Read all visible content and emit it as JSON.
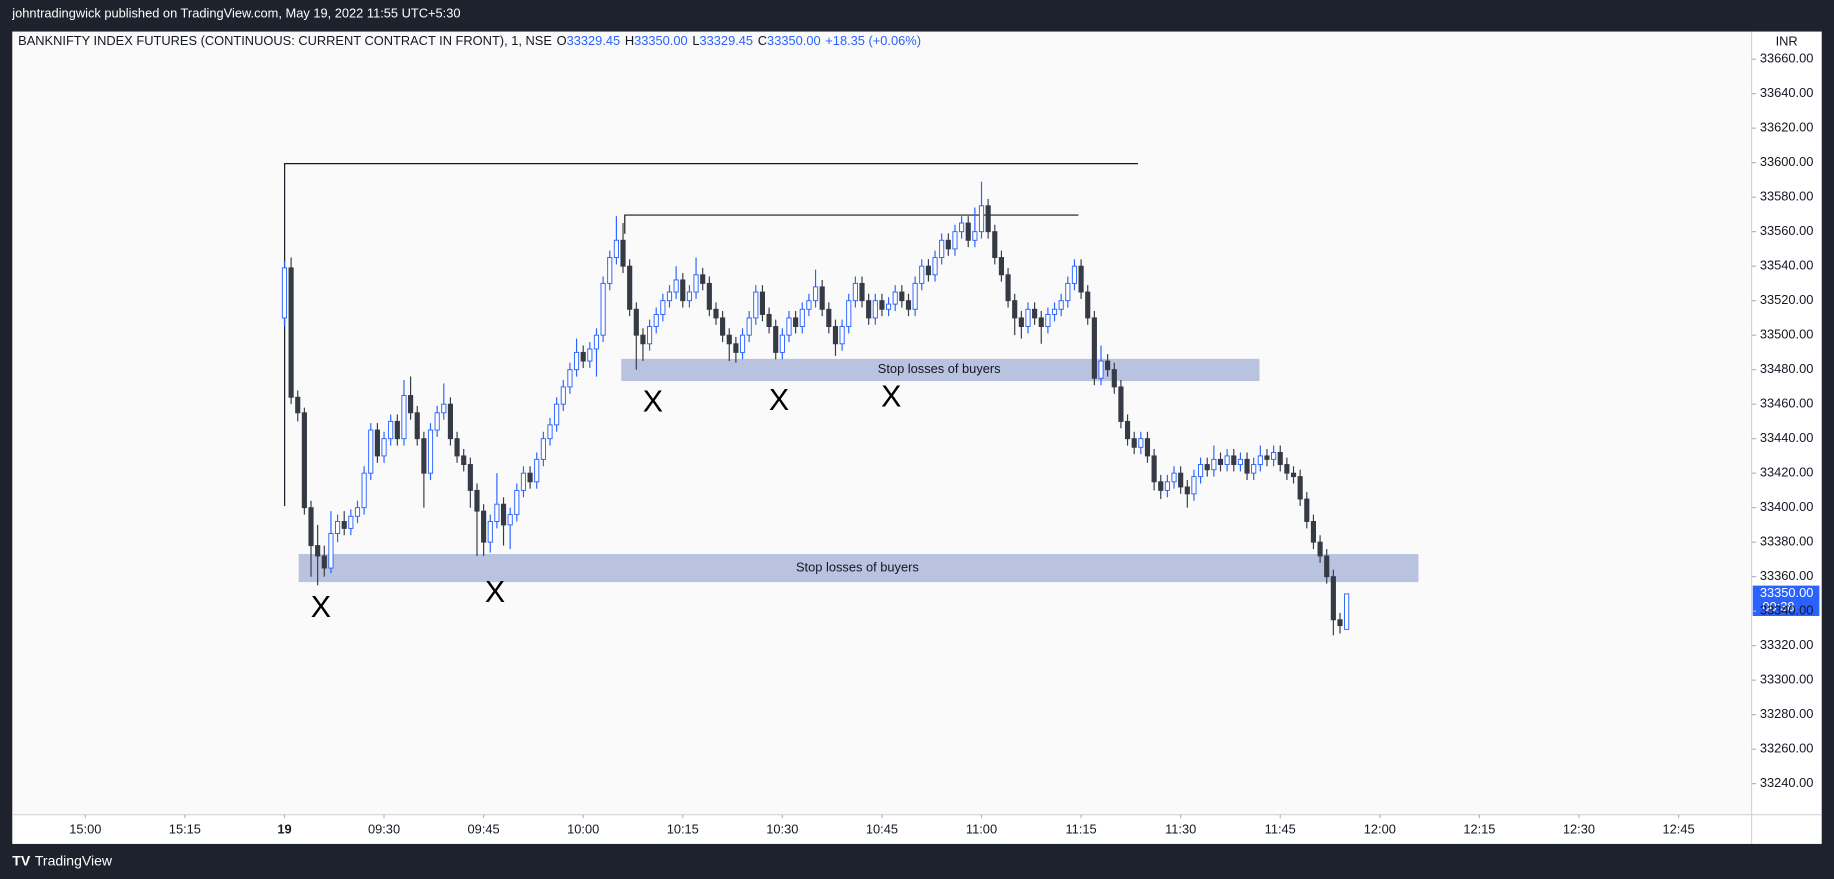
{
  "header": {
    "publisher": "johntradingwick published on TradingView.com, May 19, 2022 11:55 UTC+5:30"
  },
  "legend": {
    "symbol": "BANKNIFTY INDEX FUTURES (CONTINUOUS: CURRENT CONTRACT IN FRONT), 1, NSE",
    "o_key": "O",
    "o": "33329.45",
    "h_key": "H",
    "h": "33350.00",
    "l_key": "L",
    "l": "33329.45",
    "c_key": "C",
    "c": "33350.00",
    "change": "+18.35 (+0.06%)"
  },
  "currency": "INR",
  "price_label": {
    "price": "33350.00",
    "countdown": "00:38"
  },
  "annotations": {
    "zones": [
      "Stop losses of buyers",
      "Stop losses of buyers"
    ],
    "markers": [
      "X",
      "X",
      "X",
      "X",
      "X"
    ]
  },
  "footer": {
    "brand": "TradingView"
  },
  "chart_data": {
    "type": "candlestick",
    "grid": false,
    "up_color": "#2962ff",
    "down_color": "#363a45",
    "xlim": [
      -41,
      221
    ],
    "xticks": [
      {
        "value": -30,
        "label": "15:00"
      },
      {
        "value": -15,
        "label": "15:15"
      },
      {
        "value": 0,
        "label": "19"
      },
      {
        "value": 15,
        "label": "09:30"
      },
      {
        "value": 30,
        "label": "09:45"
      },
      {
        "value": 45,
        "label": "10:00"
      },
      {
        "value": 60,
        "label": "10:15"
      },
      {
        "value": 75,
        "label": "10:30"
      },
      {
        "value": 90,
        "label": "10:45"
      },
      {
        "value": 105,
        "label": "11:00"
      },
      {
        "value": 120,
        "label": "11:15"
      },
      {
        "value": 135,
        "label": "11:30"
      },
      {
        "value": 150,
        "label": "11:45"
      },
      {
        "value": 165,
        "label": "12:00"
      },
      {
        "value": 180,
        "label": "12:15"
      },
      {
        "value": 195,
        "label": "12:30"
      },
      {
        "value": 210,
        "label": "12:45"
      }
    ],
    "ylim": [
      33222,
      33676
    ],
    "yticks": [
      {
        "value": 33240,
        "label": "33240.00"
      },
      {
        "value": 33260,
        "label": "33260.00"
      },
      {
        "value": 33280,
        "label": "33280.00"
      },
      {
        "value": 33300,
        "label": "33300.00"
      },
      {
        "value": 33320,
        "label": "33320.00"
      },
      {
        "value": 33340,
        "label": "33340.00"
      },
      {
        "value": 33360,
        "label": "33360.00"
      },
      {
        "value": 33380,
        "label": "33380.00"
      },
      {
        "value": 33400,
        "label": "33400.00"
      },
      {
        "value": 33420,
        "label": "33420.00"
      },
      {
        "value": 33440,
        "label": "33440.00"
      },
      {
        "value": 33460,
        "label": "33460.00"
      },
      {
        "value": 33480,
        "label": "33480.00"
      },
      {
        "value": 33500,
        "label": "33500.00"
      },
      {
        "value": 33520,
        "label": "33520.00"
      },
      {
        "value": 33540,
        "label": "33540.00"
      },
      {
        "value": 33560,
        "label": "33560.00"
      },
      {
        "value": 33580,
        "label": "33580.00"
      },
      {
        "value": 33600,
        "label": "33600.00"
      },
      {
        "value": 33620,
        "label": "33620.00"
      },
      {
        "value": 33640,
        "label": "33640.00"
      },
      {
        "value": 33660,
        "label": "33660.00"
      }
    ],
    "ohlc": [
      [
        33510,
        33543,
        33505,
        33539
      ],
      [
        33539,
        33545,
        33460,
        33464
      ],
      [
        33464,
        33468,
        33450,
        33455
      ],
      [
        33455,
        33458,
        33396,
        33400
      ],
      [
        33400,
        33404,
        33360,
        33378
      ],
      [
        33378,
        33390,
        33355,
        33372
      ],
      [
        33372,
        33378,
        33360,
        33365
      ],
      [
        33365,
        33398,
        33362,
        33385
      ],
      [
        33385,
        33396,
        33380,
        33392
      ],
      [
        33392,
        33398,
        33384,
        33388
      ],
      [
        33388,
        33399,
        33384,
        33395
      ],
      [
        33395,
        33404,
        33391,
        33400
      ],
      [
        33400,
        33424,
        33396,
        33420
      ],
      [
        33420,
        33449,
        33416,
        33445
      ],
      [
        33445,
        33449,
        33426,
        33430
      ],
      [
        33430,
        33444,
        33426,
        33440
      ],
      [
        33440,
        33454,
        33436,
        33450
      ],
      [
        33450,
        33454,
        33436,
        33440
      ],
      [
        33440,
        33474,
        33436,
        33465
      ],
      [
        33465,
        33476,
        33451,
        33455
      ],
      [
        33455,
        33459,
        33436,
        33440
      ],
      [
        33440,
        33444,
        33400,
        33420
      ],
      [
        33420,
        33449,
        33416,
        33445
      ],
      [
        33445,
        33459,
        33441,
        33455
      ],
      [
        33455,
        33472,
        33451,
        33460
      ],
      [
        33460,
        33464,
        33436,
        33440
      ],
      [
        33440,
        33444,
        33426,
        33430
      ],
      [
        33430,
        33434,
        33421,
        33425
      ],
      [
        33425,
        33429,
        33400,
        33410
      ],
      [
        33410,
        33414,
        33372,
        33398
      ],
      [
        33398,
        33402,
        33372,
        33380
      ],
      [
        33380,
        33396,
        33374,
        33392
      ],
      [
        33392,
        33420,
        33388,
        33402
      ],
      [
        33402,
        33406,
        33378,
        33390
      ],
      [
        33390,
        33400,
        33376,
        33396
      ],
      [
        33396,
        33414,
        33392,
        33410
      ],
      [
        33410,
        33424,
        33406,
        33420
      ],
      [
        33420,
        33424,
        33411,
        33415
      ],
      [
        33415,
        33432,
        33411,
        33428
      ],
      [
        33428,
        33444,
        33424,
        33440
      ],
      [
        33440,
        33452,
        33436,
        33448
      ],
      [
        33448,
        33464,
        33444,
        33460
      ],
      [
        33460,
        33474,
        33456,
        33470
      ],
      [
        33470,
        33484,
        33466,
        33480
      ],
      [
        33480,
        33498,
        33476,
        33490
      ],
      [
        33490,
        33494,
        33481,
        33485
      ],
      [
        33485,
        33496,
        33481,
        33492
      ],
      [
        33492,
        33504,
        33476,
        33500
      ],
      [
        33500,
        33534,
        33496,
        33530
      ],
      [
        33530,
        33549,
        33526,
        33545
      ],
      [
        33545,
        33569,
        33541,
        33555
      ],
      [
        33555,
        33565,
        33536,
        33540
      ],
      [
        33540,
        33544,
        33511,
        33515
      ],
      [
        33515,
        33519,
        33480,
        33500
      ],
      [
        33500,
        33504,
        33485,
        33495
      ],
      [
        33495,
        33509,
        33491,
        33505
      ],
      [
        33505,
        33516,
        33501,
        33512
      ],
      [
        33512,
        33524,
        33508,
        33520
      ],
      [
        33520,
        33529,
        33516,
        33525
      ],
      [
        33525,
        33540,
        33521,
        33532
      ],
      [
        33532,
        33536,
        33516,
        33520
      ],
      [
        33520,
        33529,
        33516,
        33525
      ],
      [
        33525,
        33545,
        33521,
        33535
      ],
      [
        33535,
        33539,
        33526,
        33530
      ],
      [
        33530,
        33534,
        33511,
        33515
      ],
      [
        33515,
        33519,
        33506,
        33510
      ],
      [
        33510,
        33514,
        33496,
        33500
      ],
      [
        33500,
        33504,
        33485,
        33495
      ],
      [
        33495,
        33499,
        33484,
        33490
      ],
      [
        33490,
        33504,
        33486,
        33500
      ],
      [
        33500,
        33514,
        33496,
        33510
      ],
      [
        33510,
        33529,
        33506,
        33525
      ],
      [
        33525,
        33529,
        33508,
        33512
      ],
      [
        33512,
        33516,
        33501,
        33505
      ],
      [
        33505,
        33509,
        33486,
        33490
      ],
      [
        33490,
        33504,
        33486,
        33500
      ],
      [
        33500,
        33514,
        33496,
        33510
      ],
      [
        33510,
        33514,
        33501,
        33505
      ],
      [
        33505,
        33519,
        33501,
        33515
      ],
      [
        33515,
        33524,
        33511,
        33520
      ],
      [
        33520,
        33538,
        33516,
        33528
      ],
      [
        33528,
        33532,
        33511,
        33515
      ],
      [
        33515,
        33519,
        33501,
        33505
      ],
      [
        33505,
        33509,
        33488,
        33495
      ],
      [
        33495,
        33509,
        33491,
        33505
      ],
      [
        33505,
        33524,
        33501,
        33520
      ],
      [
        33520,
        33534,
        33516,
        33530
      ],
      [
        33530,
        33534,
        33516,
        33520
      ],
      [
        33520,
        33524,
        33506,
        33510
      ],
      [
        33510,
        33524,
        33506,
        33520
      ],
      [
        33520,
        33524,
        33511,
        33515
      ],
      [
        33515,
        33522,
        33511,
        33518
      ],
      [
        33518,
        33529,
        33514,
        33525
      ],
      [
        33525,
        33529,
        33516,
        33520
      ],
      [
        33520,
        33524,
        33511,
        33515
      ],
      [
        33515,
        33534,
        33511,
        33530
      ],
      [
        33530,
        33544,
        33526,
        33540
      ],
      [
        33540,
        33544,
        33531,
        33535
      ],
      [
        33535,
        33549,
        33531,
        33545
      ],
      [
        33545,
        33559,
        33541,
        33555
      ],
      [
        33555,
        33559,
        33546,
        33550
      ],
      [
        33550,
        33564,
        33546,
        33560
      ],
      [
        33560,
        33569,
        33556,
        33565
      ],
      [
        33565,
        33569,
        33551,
        33555
      ],
      [
        33555,
        33574,
        33551,
        33560
      ],
      [
        33560,
        33589,
        33556,
        33575
      ],
      [
        33575,
        33579,
        33556,
        33560
      ],
      [
        33560,
        33564,
        33541,
        33545
      ],
      [
        33545,
        33549,
        33531,
        33535
      ],
      [
        33535,
        33539,
        33516,
        33520
      ],
      [
        33520,
        33524,
        33500,
        33510
      ],
      [
        33510,
        33514,
        33498,
        33505
      ],
      [
        33505,
        33519,
        33501,
        33515
      ],
      [
        33515,
        33519,
        33506,
        33510
      ],
      [
        33510,
        33514,
        33495,
        33505
      ],
      [
        33505,
        33516,
        33501,
        33512
      ],
      [
        33512,
        33519,
        33508,
        33515
      ],
      [
        33515,
        33524,
        33511,
        33520
      ],
      [
        33520,
        33534,
        33516,
        33530
      ],
      [
        33530,
        33544,
        33526,
        33540
      ],
      [
        33540,
        33544,
        33521,
        33525
      ],
      [
        33525,
        33529,
        33506,
        33510
      ],
      [
        33510,
        33514,
        33471,
        33475
      ],
      [
        33475,
        33494,
        33471,
        33485
      ],
      [
        33485,
        33489,
        33476,
        33480
      ],
      [
        33480,
        33484,
        33466,
        33470
      ],
      [
        33470,
        33474,
        33446,
        33450
      ],
      [
        33450,
        33454,
        33436,
        33440
      ],
      [
        33440,
        33444,
        33431,
        33435
      ],
      [
        33435,
        33444,
        33431,
        33440
      ],
      [
        33440,
        33444,
        33426,
        33430
      ],
      [
        33430,
        33434,
        33410,
        33415
      ],
      [
        33415,
        33419,
        33405,
        33410
      ],
      [
        33410,
        33419,
        33406,
        33415
      ],
      [
        33415,
        33424,
        33411,
        33420
      ],
      [
        33420,
        33424,
        33408,
        33412
      ],
      [
        33412,
        33416,
        33400,
        33408
      ],
      [
        33408,
        33422,
        33404,
        33418
      ],
      [
        33418,
        33429,
        33414,
        33425
      ],
      [
        33425,
        33429,
        33418,
        33422
      ],
      [
        33422,
        33436,
        33418,
        33428
      ],
      [
        33428,
        33432,
        33421,
        33425
      ],
      [
        33425,
        33434,
        33421,
        33430
      ],
      [
        33430,
        33434,
        33421,
        33425
      ],
      [
        33425,
        33432,
        33421,
        33428
      ],
      [
        33428,
        33432,
        33416,
        33420
      ],
      [
        33420,
        33429,
        33416,
        33425
      ],
      [
        33425,
        33436,
        33421,
        33430
      ],
      [
        33430,
        33434,
        33424,
        33428
      ],
      [
        33428,
        33436,
        33424,
        33432
      ],
      [
        33432,
        33436,
        33421,
        33425
      ],
      [
        33425,
        33429,
        33416,
        33420
      ],
      [
        33420,
        33424,
        33414,
        33418
      ],
      [
        33418,
        33422,
        33401,
        33405
      ],
      [
        33405,
        33409,
        33388,
        33392
      ],
      [
        33392,
        33396,
        33376,
        33380
      ],
      [
        33380,
        33384,
        33368,
        33372
      ],
      [
        33372,
        33376,
        33356,
        33360
      ],
      [
        33360,
        33364,
        33326,
        33335
      ],
      [
        33335,
        33339,
        33327,
        33331.65
      ],
      [
        33329.45,
        33350,
        33329.45,
        33350
      ]
    ]
  }
}
